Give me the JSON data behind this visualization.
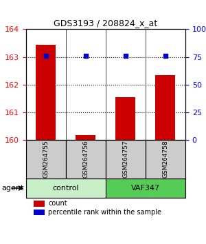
{
  "title": "GDS3193 / 208824_x_at",
  "samples": [
    "GSM264755",
    "GSM264756",
    "GSM264757",
    "GSM264758"
  ],
  "groups": [
    "control",
    "control",
    "VAF347",
    "VAF347"
  ],
  "count_values": [
    163.45,
    160.17,
    161.55,
    162.35
  ],
  "percentile_values": [
    76,
    76,
    76,
    76
  ],
  "ylim_left": [
    160,
    164
  ],
  "ylim_right": [
    0,
    100
  ],
  "yticks_left": [
    160,
    161,
    162,
    163,
    164
  ],
  "yticks_right": [
    0,
    25,
    50,
    75,
    100
  ],
  "yticklabels_right": [
    "0",
    "25",
    "50",
    "75",
    "100%"
  ],
  "bar_color": "#cc0000",
  "dot_color": "#0000cc",
  "group_colors": {
    "control": "#90ee90",
    "VAF347": "#44cc44"
  },
  "control_color": "#c8f0c8",
  "vaf_color": "#55cc55",
  "sample_box_color": "#cccccc",
  "grid_color": "#000000",
  "agent_label": "agent",
  "legend_count": "count",
  "legend_percentile": "percentile rank within the sample"
}
